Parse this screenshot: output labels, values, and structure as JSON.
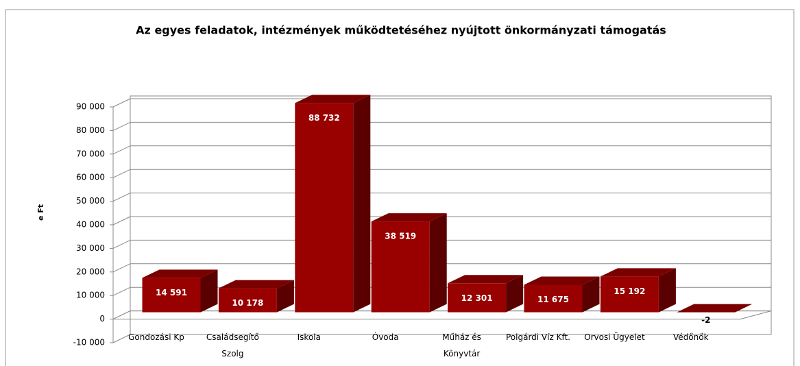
{
  "chart_data": {
    "type": "bar3d",
    "title": "Az egyes feladatok, intézmények működtetéséhez nyújtott önkormányzati támogatás",
    "y_label": "e Ft",
    "categories": [
      "Gondozási Kp",
      "Családsegítő Szolg",
      "Iskola",
      "Óvoda",
      "Műház és Könyvtár",
      "Polgárdi Víz Kft.",
      "Orvosi Ügyelet",
      "Védőnők"
    ],
    "values": [
      14591,
      10178,
      88732,
      38519,
      12301,
      11675,
      15192,
      -2
    ],
    "value_labels": [
      "14 591",
      "10 178",
      "88 732",
      "38 519",
      "12 301",
      "11 675",
      "15 192",
      "-2"
    ],
    "color": "#990000",
    "ylim": [
      -10000,
      90000
    ],
    "yticks": [
      {
        "value": -10000,
        "label": "-10 000"
      },
      0,
      {
        "value": 10000,
        "label": "10 000"
      },
      {
        "value": 20000,
        "label": "20 000"
      },
      {
        "value": 30000,
        "label": "30 000"
      },
      {
        "value": 40000,
        "label": "40 000"
      },
      {
        "value": 50000,
        "label": "50 000"
      },
      {
        "value": 60000,
        "label": "60 000"
      },
      {
        "value": 70000,
        "label": "70 000"
      },
      {
        "value": 80000,
        "label": "80 000"
      },
      {
        "value": 90000,
        "label": "90 000"
      }
    ],
    "grid": true
  }
}
